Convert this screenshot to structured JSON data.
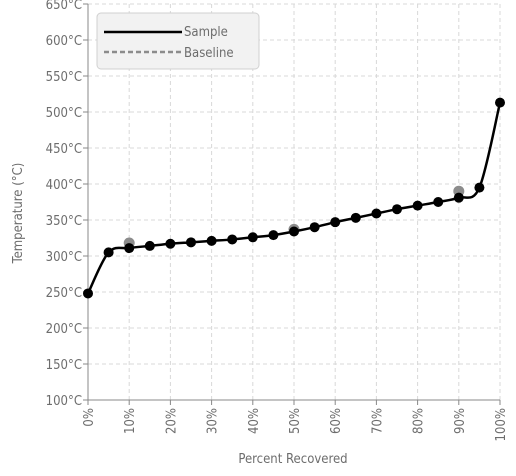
{
  "chart_data": {
    "type": "line",
    "xlabel": "Percent Recovered",
    "ylabel": "Temperature (°C)",
    "x_ticks": [
      "0%",
      "10%",
      "20%",
      "30%",
      "40%",
      "50%",
      "60%",
      "70%",
      "80%",
      "90%",
      "100%"
    ],
    "y_ticks": [
      "100°C",
      "150°C",
      "200°C",
      "250°C",
      "300°C",
      "350°C",
      "400°C",
      "450°C",
      "500°C",
      "550°C",
      "600°C",
      "650°C"
    ],
    "xlim": [
      0,
      100
    ],
    "ylim": [
      100,
      650
    ],
    "grid": true,
    "legend_position": "top-left",
    "series": [
      {
        "name": "Sample",
        "color": "#000000",
        "style": "solid",
        "x": [
          0,
          5,
          10,
          15,
          20,
          25,
          30,
          35,
          40,
          45,
          50,
          55,
          60,
          65,
          70,
          75,
          80,
          85,
          90,
          95,
          100
        ],
        "values": [
          248,
          305,
          311,
          314,
          317,
          319,
          321,
          323,
          326,
          329,
          334,
          340,
          347,
          353,
          359,
          365,
          370,
          375,
          381,
          395,
          513
        ]
      },
      {
        "name": "Baseline",
        "color": "#8c8c8c",
        "style": "dashed",
        "x": [
          10,
          50,
          90
        ],
        "values": [
          318,
          337,
          390
        ]
      }
    ]
  }
}
